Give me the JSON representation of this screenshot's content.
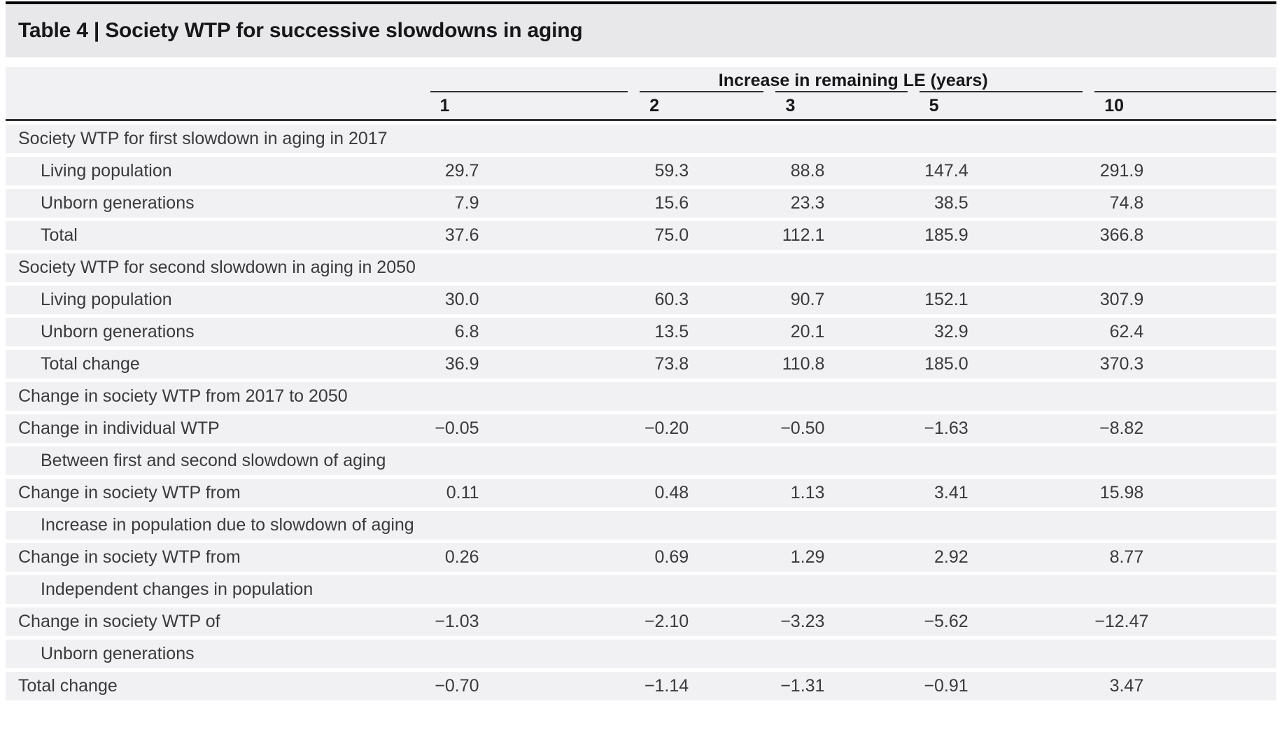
{
  "table": {
    "title": "Table 4 | Society WTP for successive slowdowns in aging",
    "group_header": "Increase in remaining LE (years)",
    "column_headers": [
      "1",
      "2",
      "3",
      "5",
      "10"
    ],
    "rows": [
      {
        "label": "Society WTP for first slowdown in aging in 2017",
        "indent": false,
        "values": [
          "",
          "",
          "",
          "",
          ""
        ]
      },
      {
        "label": "Living population",
        "indent": true,
        "values": [
          "29.7",
          "59.3",
          "88.8",
          "147.4",
          "291.9"
        ]
      },
      {
        "label": "Unborn generations",
        "indent": true,
        "values": [
          "7.9",
          "15.6",
          "23.3",
          "38.5",
          "74.8"
        ]
      },
      {
        "label": "Total",
        "indent": true,
        "values": [
          "37.6",
          "75.0",
          "112.1",
          "185.9",
          "366.8"
        ]
      },
      {
        "label": "Society WTP for second slowdown in aging in 2050",
        "indent": false,
        "values": [
          "",
          "",
          "",
          "",
          ""
        ]
      },
      {
        "label": "Living population",
        "indent": true,
        "values": [
          "30.0",
          "60.3",
          "90.7",
          "152.1",
          "307.9"
        ]
      },
      {
        "label": "Unborn generations",
        "indent": true,
        "values": [
          "6.8",
          "13.5",
          "20.1",
          "32.9",
          "62.4"
        ]
      },
      {
        "label": "Total change",
        "indent": true,
        "values": [
          "36.9",
          "73.8",
          "110.8",
          "185.0",
          "370.3"
        ]
      },
      {
        "label": "Change in society WTP from 2017 to 2050",
        "indent": false,
        "values": [
          "",
          "",
          "",
          "",
          ""
        ]
      },
      {
        "label": "Change in individual WTP",
        "indent": false,
        "values": [
          "−0.05",
          "−0.20",
          "−0.50",
          "−1.63",
          "−8.82"
        ]
      },
      {
        "label": "Between first and second slowdown of aging",
        "indent": true,
        "values": [
          "",
          "",
          "",
          "",
          ""
        ]
      },
      {
        "label": "Change in society WTP from",
        "indent": false,
        "values": [
          "0.11",
          "0.48",
          "1.13",
          "3.41",
          "15.98"
        ]
      },
      {
        "label": "Increase in population due to slowdown of aging",
        "indent": true,
        "values": [
          "",
          "",
          "",
          "",
          ""
        ]
      },
      {
        "label": "Change in society WTP from",
        "indent": false,
        "values": [
          "0.26",
          "0.69",
          "1.29",
          "2.92",
          "8.77"
        ]
      },
      {
        "label": "Independent changes in population",
        "indent": true,
        "values": [
          "",
          "",
          "",
          "",
          ""
        ]
      },
      {
        "label": "Change in society WTP of",
        "indent": false,
        "values": [
          "−1.03",
          "−2.10",
          "−3.23",
          "−5.62",
          "−12.47"
        ]
      },
      {
        "label": "Unborn generations",
        "indent": true,
        "values": [
          "",
          "",
          "",
          "",
          ""
        ]
      },
      {
        "label": "Total change",
        "indent": false,
        "values": [
          "−0.70",
          "−1.14",
          "−1.31",
          "−0.91",
          "3.47"
        ]
      }
    ],
    "colors": {
      "title_band": "#e8e8ea",
      "row_band": "#f1f1f3",
      "rule_dark": "#2e2e31",
      "top_rule": "#000000",
      "text": "#3a3a3e",
      "text_bold": "#17171a"
    }
  }
}
